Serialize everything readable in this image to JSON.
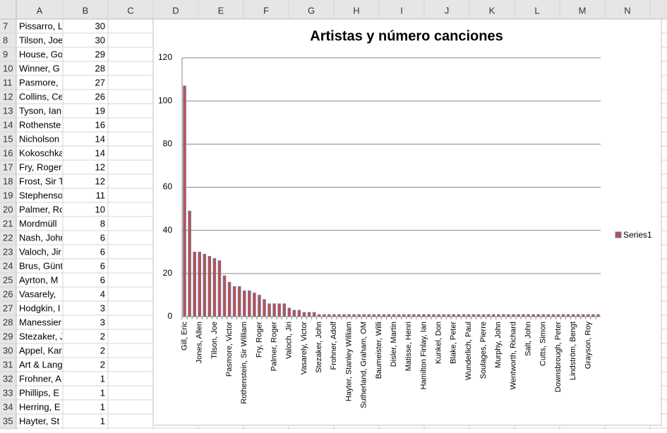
{
  "sheet": {
    "columns": [
      "A",
      "B",
      "C",
      "D",
      "E",
      "F",
      "G",
      "H",
      "I",
      "J",
      "K",
      "L",
      "M",
      "N"
    ],
    "rows": [
      7,
      8,
      9,
      10,
      11,
      12,
      13,
      14,
      15,
      16,
      17,
      18,
      19,
      20,
      21,
      22,
      23,
      24,
      25,
      26,
      27,
      28,
      29,
      30,
      31,
      32,
      33,
      34,
      35
    ],
    "names": [
      "Pissarro, L",
      "Tilson, Joe",
      "House, Go",
      "Winner, G",
      "Pasmore,",
      "Collins, Ce",
      "Tyson, Ian",
      "Rothenste",
      "Nicholson",
      "Kokoschka",
      "Fry, Roger",
      "Frost, Sir T",
      "Stephenso",
      "Palmer, Ro",
      "Mordmüll",
      "Nash, John",
      "Valoch, Jir",
      "Brus, Günt",
      "Ayrton, M",
      "Vasarely,",
      "Hodgkin, I",
      "Manessier",
      "Stezaker, J",
      "Appel, Kar",
      "Art & Lang",
      "Frohner, A",
      "Phillips, E",
      "Herring, E",
      "Hayter, St"
    ]
  },
  "chart_data": {
    "type": "bar",
    "title": "Artistas y número canciones",
    "categories": [
      "Gill, Eric",
      null,
      null,
      "Jones, Allen",
      null,
      null,
      "Tilson, Joe",
      null,
      null,
      "Pasmore, Victor",
      null,
      null,
      "Rothenstein, Sir William",
      null,
      null,
      "Fry, Roger",
      null,
      null,
      "Palmer, Roger",
      null,
      null,
      "Valoch, Jiri",
      null,
      null,
      "Vasarely, Victor",
      null,
      null,
      "Stezaker, John",
      null,
      null,
      "Frohner, Adolf",
      null,
      null,
      "Hayter, Stanley William",
      null,
      null,
      "Sutherland, Graham, OM",
      null,
      null,
      "Baumeister, Willi",
      null,
      null,
      "Disler, Martin",
      null,
      null,
      "Matisse, Henri",
      null,
      null,
      "Hamilton Finlay, Ian",
      null,
      null,
      "Kunkel, Don",
      null,
      null,
      "Blake, Peter",
      null,
      null,
      "Wunderlich, Paul",
      null,
      null,
      "Soulages, Pierre",
      null,
      null,
      "Murphy, John",
      null,
      null,
      "Wentworth, Richard",
      null,
      null,
      "Salt, John",
      null,
      null,
      "Cutts, Simon",
      null,
      null,
      "Downsbrough, Peter",
      null,
      null,
      "Lindström, Bengt",
      null,
      null,
      "Grayson, Roy",
      null,
      null
    ],
    "series": [
      {
        "name": "Series1",
        "color": "#c0504d",
        "values": [
          107,
          49,
          30,
          30,
          29,
          28,
          27,
          26,
          19,
          16,
          14,
          14,
          12,
          12,
          11,
          10,
          8,
          6,
          6,
          6,
          6,
          4,
          3,
          3,
          2,
          2,
          2,
          1,
          1,
          1,
          1,
          1,
          1,
          1,
          1,
          1,
          1,
          1,
          1,
          1,
          1,
          1,
          1,
          1,
          1,
          1,
          1,
          1,
          1,
          1,
          1,
          1,
          1,
          1,
          1,
          1,
          1,
          1,
          1,
          1,
          1,
          1,
          1,
          1,
          1,
          1,
          1,
          1,
          1,
          1,
          1,
          1,
          1,
          1,
          1,
          1,
          1,
          1,
          1,
          1,
          1,
          1,
          1,
          1
        ]
      }
    ],
    "ylim": [
      0,
      120
    ],
    "yticks": [
      0,
      20,
      40,
      60,
      80,
      100,
      120
    ],
    "grid": true,
    "legend": "right"
  }
}
